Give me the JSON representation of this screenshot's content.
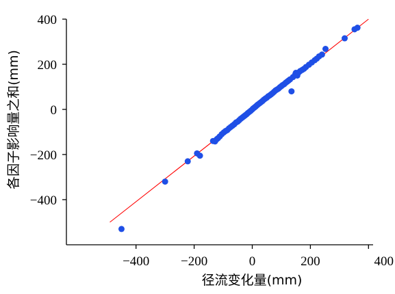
{
  "chart_data": {
    "type": "scatter",
    "title": "",
    "xlabel": "径流变化量(mm)",
    "ylabel": "各因子影响量之和(mm)",
    "xlim": [
      -600,
      400
    ],
    "ylim": [
      -600,
      400
    ],
    "x_ticks": [
      -400,
      -200,
      0,
      200,
      400
    ],
    "y_ticks": [
      -400,
      -200,
      0,
      200,
      400
    ],
    "x_tick_labels": [
      "−400",
      "−200",
      "0",
      "200",
      "400"
    ],
    "y_tick_labels": [
      "−400",
      "−200",
      "0",
      "200",
      "400"
    ],
    "grid": false,
    "colors": {
      "points": "#1f4fe6",
      "fit_line": "#ff0000",
      "axes": "#000000"
    },
    "fit_line": {
      "x": [
        -490,
        400
      ],
      "y": [
        -500,
        400
      ]
    },
    "points": [
      [
        -450,
        -530
      ],
      [
        -300,
        -320
      ],
      [
        -222,
        -230
      ],
      [
        -190,
        -195
      ],
      [
        -180,
        -205
      ],
      [
        -135,
        -140
      ],
      [
        -128,
        -142
      ],
      [
        -122,
        -132
      ],
      [
        -118,
        -128
      ],
      [
        -112,
        -120
      ],
      [
        -105,
        -110
      ],
      [
        -98,
        -102
      ],
      [
        -92,
        -96
      ],
      [
        -86,
        -92
      ],
      [
        -80,
        -84
      ],
      [
        -74,
        -78
      ],
      [
        -68,
        -72
      ],
      [
        -62,
        -66
      ],
      [
        -56,
        -58
      ],
      [
        -50,
        -54
      ],
      [
        -45,
        -48
      ],
      [
        -40,
        -42
      ],
      [
        -35,
        -37
      ],
      [
        -30,
        -32
      ],
      [
        -25,
        -27
      ],
      [
        -20,
        -22
      ],
      [
        -15,
        -16
      ],
      [
        -10,
        -11
      ],
      [
        -5,
        -6
      ],
      [
        0,
        0
      ],
      [
        4,
        5
      ],
      [
        8,
        9
      ],
      [
        12,
        13
      ],
      [
        16,
        18
      ],
      [
        20,
        22
      ],
      [
        25,
        27
      ],
      [
        30,
        32
      ],
      [
        35,
        37
      ],
      [
        40,
        43
      ],
      [
        45,
        48
      ],
      [
        50,
        52
      ],
      [
        55,
        58
      ],
      [
        60,
        62
      ],
      [
        65,
        67
      ],
      [
        70,
        72
      ],
      [
        75,
        78
      ],
      [
        80,
        84
      ],
      [
        85,
        88
      ],
      [
        90,
        92
      ],
      [
        95,
        98
      ],
      [
        100,
        103
      ],
      [
        105,
        108
      ],
      [
        110,
        112
      ],
      [
        115,
        118
      ],
      [
        120,
        123
      ],
      [
        125,
        128
      ],
      [
        130,
        133
      ],
      [
        135,
        80
      ],
      [
        140,
        143
      ],
      [
        148,
        155
      ],
      [
        150,
        162
      ],
      [
        155,
        150
      ],
      [
        160,
        164
      ],
      [
        165,
        170
      ],
      [
        172,
        175
      ],
      [
        178,
        180
      ],
      [
        185,
        188
      ],
      [
        195,
        198
      ],
      [
        205,
        208
      ],
      [
        215,
        218
      ],
      [
        222,
        225
      ],
      [
        230,
        235
      ],
      [
        240,
        243
      ],
      [
        252,
        268
      ],
      [
        318,
        315
      ],
      [
        352,
        355
      ],
      [
        362,
        362
      ]
    ]
  }
}
